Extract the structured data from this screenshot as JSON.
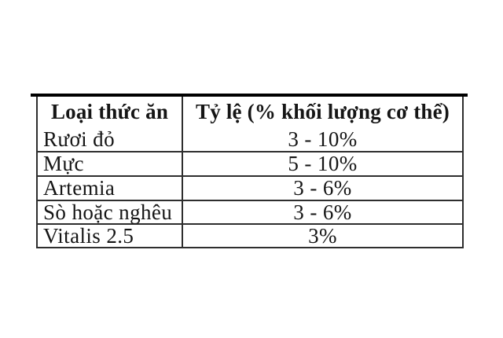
{
  "table": {
    "columns": [
      {
        "header": "Loại thức ăn"
      },
      {
        "header": "Tỷ lệ (% khối lượng cơ thể)"
      }
    ],
    "rows": [
      {
        "food": "Rươi đỏ",
        "ratio": "3 - 10%"
      },
      {
        "food": "Mực",
        "ratio": "5 - 10%"
      },
      {
        "food": "Artemia",
        "ratio": "3 - 6%"
      },
      {
        "food": "Sò hoặc nghêu",
        "ratio": "3 - 6%"
      },
      {
        "food": "Vitalis 2.5",
        "ratio": "3%"
      }
    ],
    "colors": {
      "thick_rule": "#000000",
      "grid_line": "#2e2e2e",
      "text": "#151515",
      "background": "#ffffff"
    }
  }
}
